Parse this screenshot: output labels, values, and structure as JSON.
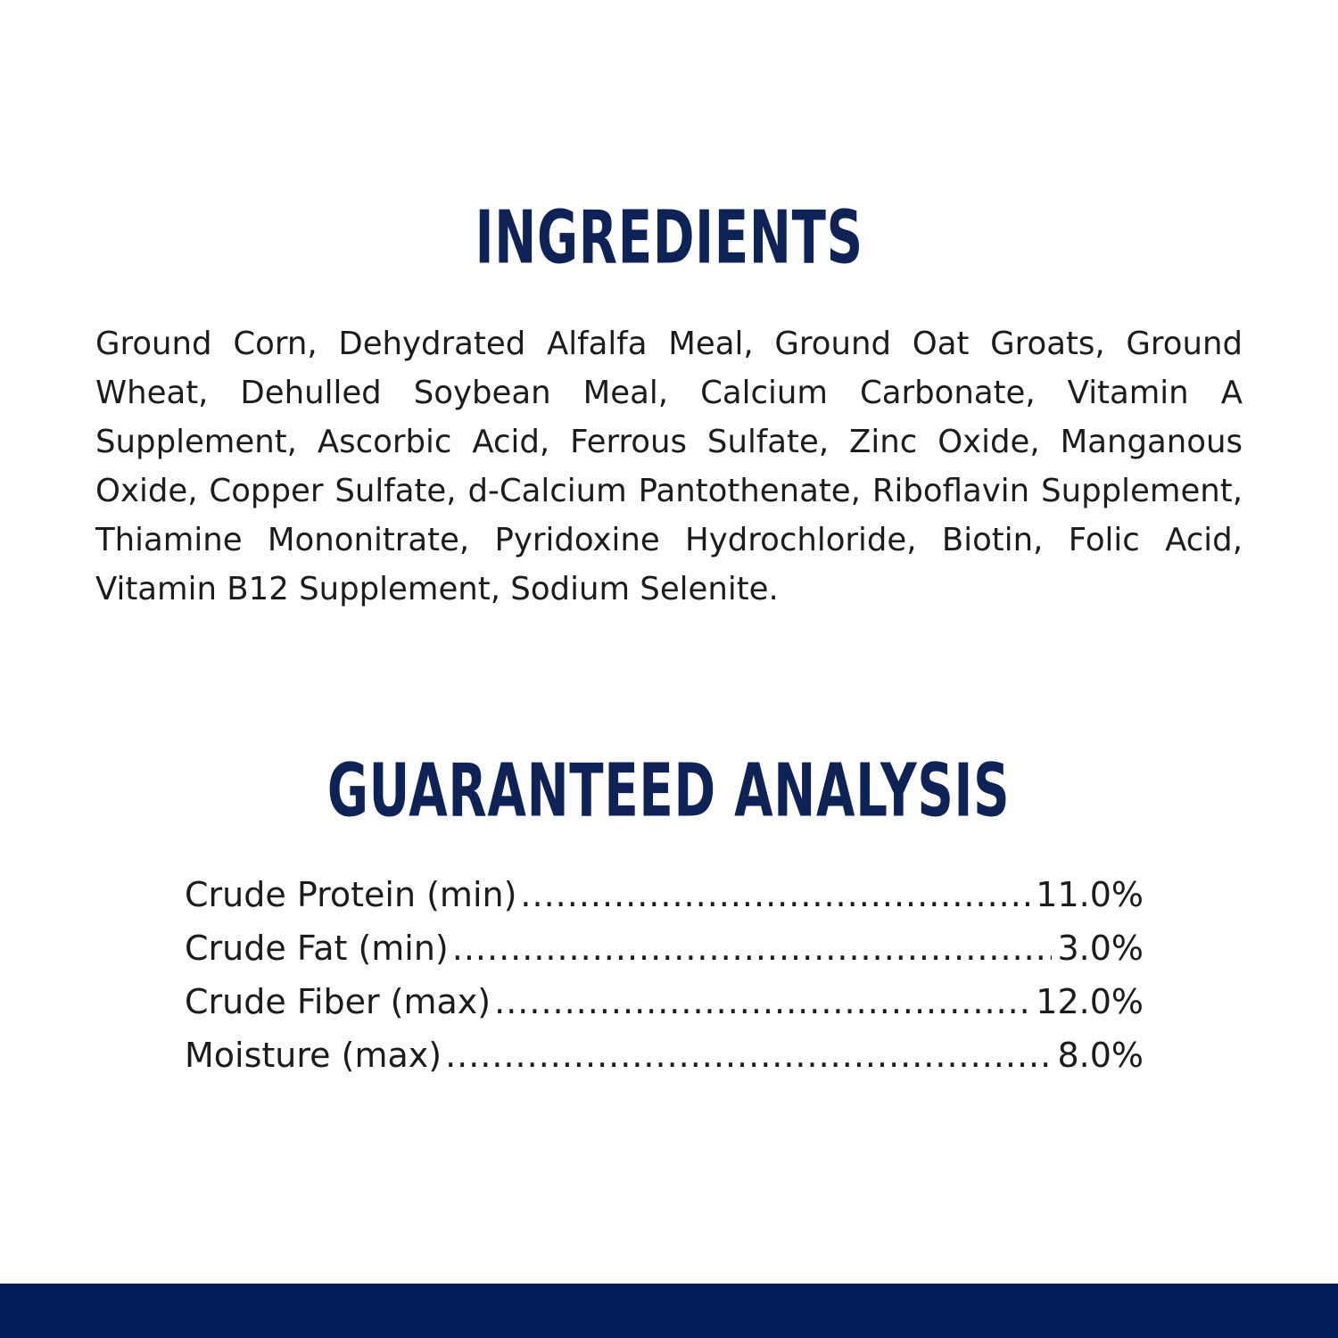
{
  "ingredients": {
    "title": "INGREDIENTS",
    "text": "Ground Corn, Dehydrated Alfalfa Meal, Ground Oat Groats, Ground Wheat, Dehulled Soybean Meal, Calcium Carbonate, Vitamin A Supplement, Ascorbic Acid, Ferrous Sulfate, Zinc Oxide, Manganous Oxide, Copper Sulfate, d-Calcium Pantothenate, Riboflavin Supplement, Thiamine Mononitrate, Pyridoxine Hydrochloride, Biotin, Folic Acid, Vitamin B12 Supplement, Sodium Selenite."
  },
  "analysis": {
    "title": "GUARANTEED ANALYSIS",
    "rows": [
      {
        "label": "Crude Protein (min)",
        "value": "11.0%"
      },
      {
        "label": "Crude Fat (min)",
        "value": "3.0%"
      },
      {
        "label": "Crude Fiber (max)",
        "value": "12.0%"
      },
      {
        "label": "Moisture (max)",
        "value": "8.0%"
      }
    ]
  },
  "colors": {
    "title": "#0f2255",
    "band": "#021d56",
    "text": "#1c1c1c"
  }
}
